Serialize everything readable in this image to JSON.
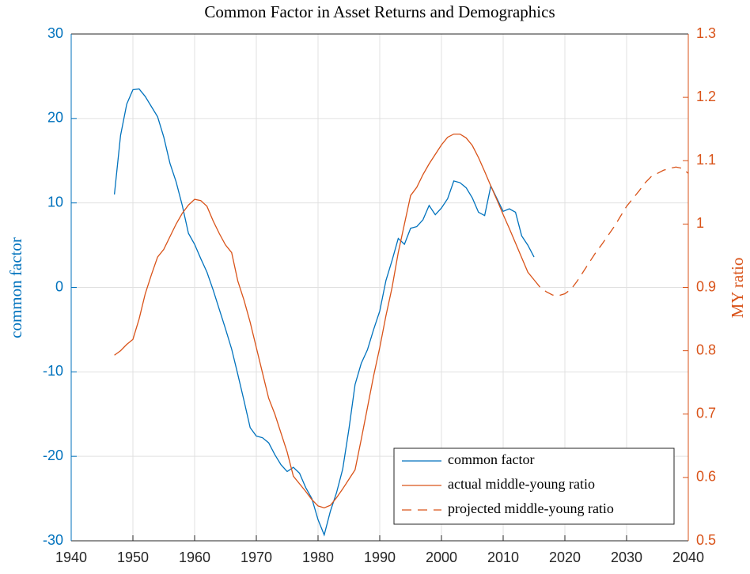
{
  "chart_data": {
    "type": "line",
    "title": "Common Factor in Asset Returns and Demographics",
    "y_label": "common factor",
    "y2_label": "MY ratio",
    "xlim": [
      1940,
      2040
    ],
    "xticks": [
      1940,
      1950,
      1960,
      1970,
      1980,
      1990,
      2000,
      2010,
      2020,
      2030,
      2040
    ],
    "ylim": [
      -30,
      30
    ],
    "yticks": [
      -30,
      -20,
      -10,
      0,
      10,
      20,
      30
    ],
    "y2lim": [
      0.5,
      1.3
    ],
    "y2ticks": [
      0.5,
      0.6,
      0.7,
      0.8,
      0.9,
      1,
      1.1,
      1.2,
      1.3
    ],
    "grid": true,
    "legend": "lower right",
    "y_color": "#0072bd",
    "y2_color": "#d95319",
    "series": [
      {
        "name": "common factor",
        "color": "#0072bd",
        "dash": "solid",
        "x": [
          1947,
          1948,
          1949,
          1950,
          1951,
          1952,
          1953,
          1954,
          1955,
          1956,
          1957,
          1958,
          1959,
          1960,
          1961,
          1962,
          1963,
          1964,
          1965,
          1966,
          1967,
          1968,
          1969,
          1970,
          1971,
          1972,
          1973,
          1974,
          1975,
          1976,
          1977,
          1978,
          1979,
          1980,
          1981,
          1982,
          1983,
          1984,
          1985,
          1986,
          1987,
          1988,
          1989,
          1990,
          1991,
          1992,
          1993,
          1994,
          1995,
          1996,
          1997,
          1998,
          1999,
          2000,
          2001,
          2002,
          2003,
          2004,
          2005,
          2006,
          2007,
          2008,
          2009,
          2010,
          2011,
          2012,
          2013,
          2014,
          2015
        ],
        "values": [
          11,
          18,
          21.7,
          23.4,
          23.5,
          22.6,
          21.4,
          20.2,
          17.8,
          14.7,
          12.5,
          9.7,
          6.4,
          5.1,
          3.4,
          1.8,
          -0.3,
          -2.6,
          -4.9,
          -7.3,
          -10.3,
          -13.4,
          -16.6,
          -17.6,
          -17.8,
          -18.4,
          -19.8,
          -21,
          -21.8,
          -21.3,
          -22,
          -23.7,
          -25,
          -27.5,
          -29.3,
          -26.5,
          -24.3,
          -21.5,
          -16.8,
          -11.5,
          -9,
          -7.4,
          -5,
          -2.8,
          0.8,
          3.2,
          5.8,
          5.1,
          7,
          7.2,
          8,
          9.7,
          8.6,
          9.4,
          10.5,
          12.6,
          12.4,
          11.8,
          10.6,
          8.9,
          8.5,
          12,
          10.5,
          9,
          9.3,
          8.9,
          6.1,
          5,
          3.6
        ]
      },
      {
        "name": "actual middle-young ratio",
        "color": "#d95319",
        "dash": "solid",
        "axis": "y2",
        "x": [
          1947,
          1948,
          1949,
          1950,
          1951,
          1952,
          1953,
          1954,
          1955,
          1956,
          1957,
          1958,
          1959,
          1960,
          1961,
          1962,
          1963,
          1964,
          1965,
          1966,
          1967,
          1968,
          1969,
          1970,
          1971,
          1972,
          1973,
          1974,
          1975,
          1976,
          1977,
          1978,
          1979,
          1980,
          1981,
          1982,
          1983,
          1984,
          1985,
          1986,
          1987,
          1988,
          1989,
          1990,
          1991,
          1992,
          1993,
          1994,
          1995,
          1996,
          1997,
          1998,
          1999,
          2000,
          2001,
          2002,
          2003,
          2004,
          2005,
          2006,
          2007,
          2008,
          2009,
          2010,
          2011,
          2012,
          2013,
          2014,
          2015
        ],
        "values": [
          0.793,
          0.8,
          0.81,
          0.818,
          0.85,
          0.89,
          0.92,
          0.948,
          0.96,
          0.98,
          1,
          1.017,
          1.03,
          1.039,
          1.037,
          1.028,
          1.005,
          0.985,
          0.967,
          0.955,
          0.91,
          0.88,
          0.845,
          0.805,
          0.765,
          0.725,
          0.7,
          0.67,
          0.64,
          0.602,
          0.59,
          0.578,
          0.565,
          0.555,
          0.552,
          0.556,
          0.568,
          0.582,
          0.597,
          0.612,
          0.66,
          0.71,
          0.76,
          0.805,
          0.855,
          0.9,
          0.955,
          1,
          1.045,
          1.058,
          1.078,
          1.095,
          1.11,
          1.125,
          1.137,
          1.142,
          1.142,
          1.136,
          1.124,
          1.105,
          1.083,
          1.06,
          1.038,
          1.015,
          0.993,
          0.97,
          0.947,
          0.924,
          0.912
        ]
      },
      {
        "name": "projected middle-young ratio",
        "color": "#d95319",
        "dash": "dashed",
        "axis": "y2",
        "x": [
          2015,
          2016,
          2017,
          2018,
          2019,
          2020,
          2021,
          2022,
          2023,
          2024,
          2025,
          2026,
          2027,
          2028,
          2029,
          2030,
          2031,
          2032,
          2033,
          2034,
          2035,
          2036,
          2037,
          2038,
          2039,
          2040
        ],
        "values": [
          0.912,
          0.9,
          0.893,
          0.888,
          0.887,
          0.89,
          0.897,
          0.91,
          0.925,
          0.94,
          0.955,
          0.968,
          0.982,
          0.996,
          1.012,
          1.028,
          1.04,
          1.052,
          1.065,
          1.075,
          1.08,
          1.085,
          1.088,
          1.09,
          1.088,
          1.08
        ]
      }
    ]
  }
}
